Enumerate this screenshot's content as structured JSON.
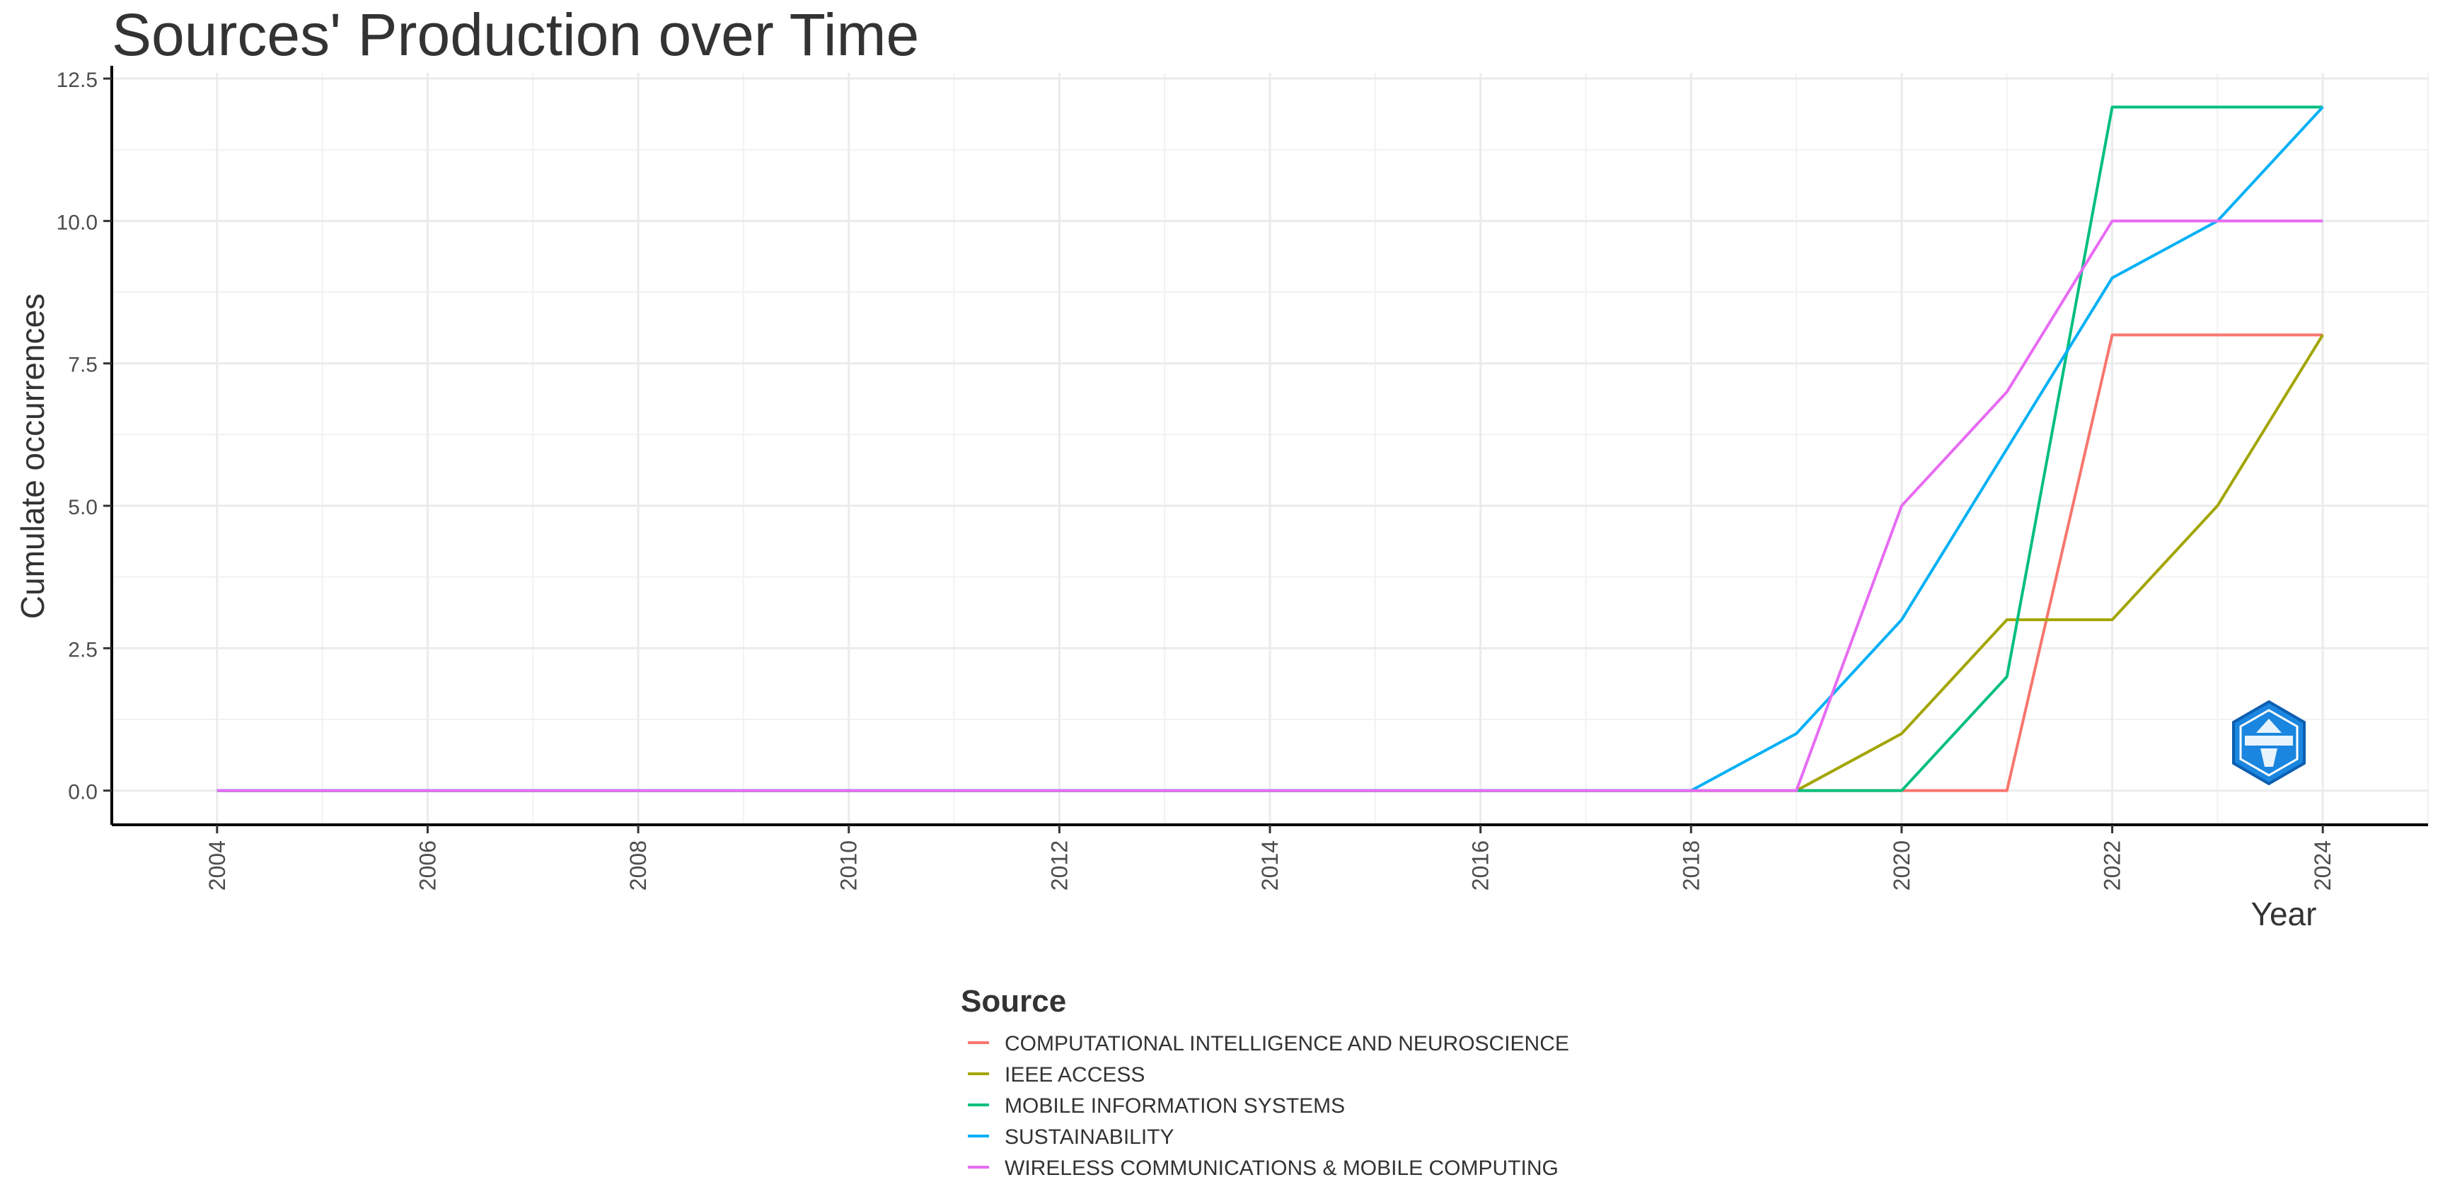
{
  "chart_data": {
    "type": "line",
    "title": "Sources' Production over Time",
    "xlabel": "Year",
    "ylabel": "Cumulate occurrences",
    "x": [
      2004,
      2005,
      2006,
      2007,
      2008,
      2009,
      2010,
      2011,
      2012,
      2013,
      2014,
      2015,
      2016,
      2017,
      2018,
      2019,
      2020,
      2021,
      2022,
      2023,
      2024
    ],
    "xlim": [
      2003,
      2025
    ],
    "ylim": [
      -0.6,
      12.6
    ],
    "x_ticks": [
      "2004",
      "2006",
      "2008",
      "2010",
      "2012",
      "2014",
      "2016",
      "2018",
      "2020",
      "2022",
      "2024"
    ],
    "y_ticks": [
      "0.0",
      "2.5",
      "5.0",
      "7.5",
      "10.0",
      "12.5"
    ],
    "grid": true,
    "legend": {
      "title": "Source",
      "position": "bottom"
    },
    "series": [
      {
        "name": "COMPUTATIONAL INTELLIGENCE AND NEUROSCIENCE",
        "color": "#F8766D",
        "values": [
          0,
          0,
          0,
          0,
          0,
          0,
          0,
          0,
          0,
          0,
          0,
          0,
          0,
          0,
          0,
          0,
          0,
          0,
          8,
          8,
          8
        ]
      },
      {
        "name": "IEEE ACCESS",
        "color": "#A3A500",
        "values": [
          0,
          0,
          0,
          0,
          0,
          0,
          0,
          0,
          0,
          0,
          0,
          0,
          0,
          0,
          0,
          0,
          1,
          3,
          3,
          5,
          8
        ]
      },
      {
        "name": "MOBILE INFORMATION SYSTEMS",
        "color": "#00BF7D",
        "values": [
          0,
          0,
          0,
          0,
          0,
          0,
          0,
          0,
          0,
          0,
          0,
          0,
          0,
          0,
          0,
          0,
          0,
          2,
          12,
          12,
          12
        ]
      },
      {
        "name": "SUSTAINABILITY",
        "color": "#00B0F6",
        "values": [
          0,
          0,
          0,
          0,
          0,
          0,
          0,
          0,
          0,
          0,
          0,
          0,
          0,
          0,
          0,
          1,
          3,
          6,
          9,
          10,
          12
        ]
      },
      {
        "name": "WIRELESS COMMUNICATIONS & MOBILE COMPUTING",
        "color": "#E76BF3",
        "values": [
          0,
          0,
          0,
          0,
          0,
          0,
          0,
          0,
          0,
          0,
          0,
          0,
          0,
          0,
          0,
          0,
          5,
          7,
          10,
          10,
          10
        ]
      }
    ]
  },
  "logo": {
    "icon": "bibliometrix-logo-icon",
    "color": "#1a86e0"
  }
}
